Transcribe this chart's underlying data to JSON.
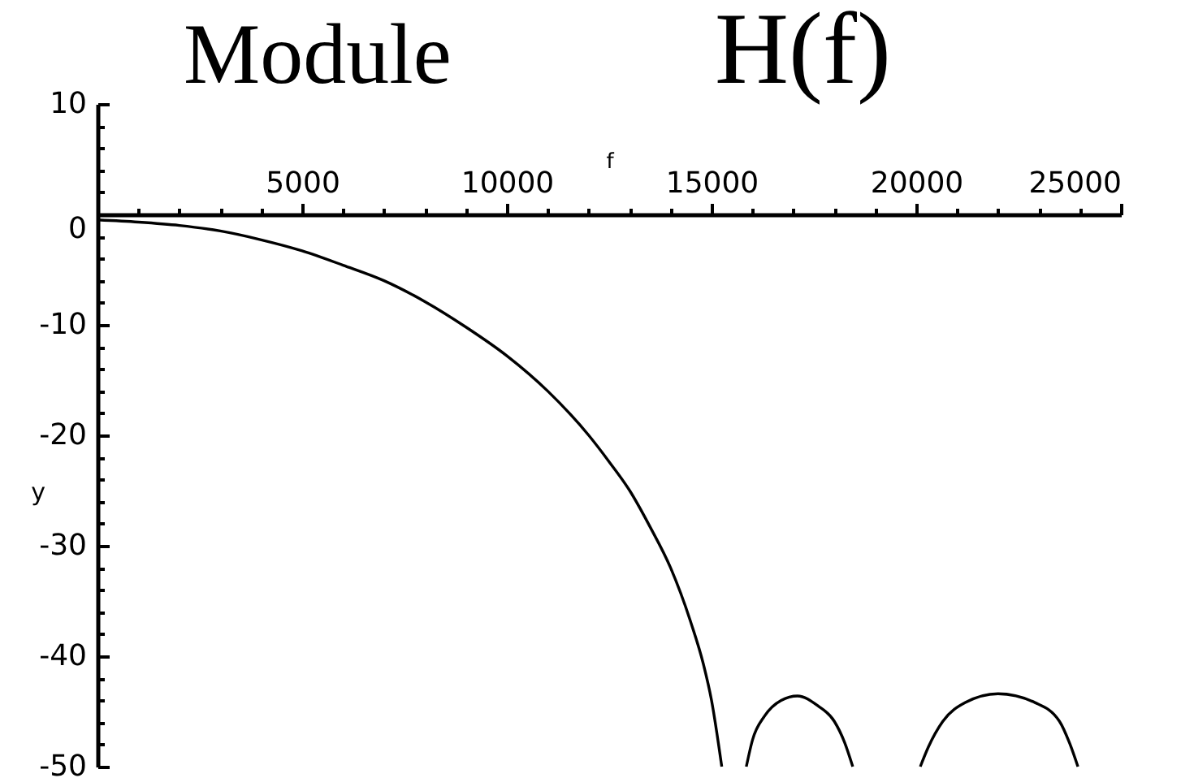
{
  "chart_data": {
    "type": "line",
    "title": "Module",
    "subtitle": "H(f)",
    "xlabel": "f",
    "ylabel": "y",
    "x": [
      0,
      1000,
      2000,
      3000,
      4000,
      5000,
      6000,
      7000,
      8000,
      9000,
      10000,
      11000,
      12000,
      12500,
      13000,
      13500,
      14000,
      14500,
      14800,
      15000,
      15250,
      15550,
      15850,
      16000,
      16300,
      16700,
      17100,
      17600,
      18000,
      18250,
      18450,
      19300,
      20100,
      20300,
      20650,
      21200,
      22000,
      22900,
      23500,
      23750,
      23950
    ],
    "series": [
      {
        "color": "#000000",
        "values": [
          -0.5,
          -0.7,
          -1,
          -1.5,
          -2.3,
          -3.3,
          -4.6,
          -6,
          -7.9,
          -10.2,
          -12.8,
          -16,
          -20,
          -22.4,
          -25,
          -28.3,
          -32,
          -37,
          -40.7,
          -44,
          -50,
          null,
          -50,
          -47.6,
          -45.4,
          -44,
          -43.6,
          -44.5,
          -45.9,
          -47.8,
          -50,
          null,
          -50,
          -48.2,
          -45.9,
          -44.2,
          -43.4,
          -44.2,
          -45.9,
          -47.9,
          -50
        ]
      }
    ],
    "xlim": [
      0,
      25000
    ],
    "xticks": [
      {
        "value": 1000,
        "label": null
      },
      {
        "value": 2000,
        "label": null
      },
      {
        "value": 3000,
        "label": null
      },
      {
        "value": 4000,
        "label": null
      },
      5000,
      {
        "value": 6000,
        "label": null
      },
      {
        "value": 7000,
        "label": null
      },
      {
        "value": 8000,
        "label": null
      },
      {
        "value": 9000,
        "label": null
      },
      10000,
      {
        "value": 11000,
        "label": null
      },
      {
        "value": 12000,
        "label": null
      },
      {
        "value": 13000,
        "label": null
      },
      {
        "value": 14000,
        "label": null
      },
      15000,
      {
        "value": 16000,
        "label": null
      },
      {
        "value": 17000,
        "label": null
      },
      {
        "value": 18000,
        "label": null
      },
      {
        "value": 19000,
        "label": null
      },
      20000,
      {
        "value": 21000,
        "label": null
      },
      {
        "value": 22000,
        "label": null
      },
      {
        "value": 23000,
        "label": null
      },
      {
        "value": 24000,
        "label": null
      },
      25000
    ],
    "ylim": [
      -50,
      10
    ],
    "yticks": [
      10,
      {
        "value": 8,
        "label": null
      },
      {
        "value": 6,
        "label": null
      },
      {
        "value": 4,
        "label": null
      },
      {
        "value": 2,
        "label": null
      },
      0,
      {
        "value": -2,
        "label": null
      },
      {
        "value": -4,
        "label": null
      },
      {
        "value": -6,
        "label": null
      },
      {
        "value": -8,
        "label": null
      },
      -10,
      {
        "value": -12,
        "label": null
      },
      {
        "value": -14,
        "label": null
      },
      {
        "value": -16,
        "label": null
      },
      {
        "value": -18,
        "label": null
      },
      -20,
      {
        "value": -22,
        "label": null
      },
      {
        "value": -24,
        "label": null
      },
      {
        "value": -26,
        "label": null
      },
      {
        "value": -28,
        "label": null
      },
      -30,
      {
        "value": -32,
        "label": null
      },
      {
        "value": -34,
        "label": null
      },
      {
        "value": -36,
        "label": null
      },
      {
        "value": -38,
        "label": null
      },
      -40,
      {
        "value": -42,
        "label": null
      },
      {
        "value": -44,
        "label": null
      },
      {
        "value": -46,
        "label": null
      },
      {
        "value": -48,
        "label": null
      },
      -50
    ]
  }
}
